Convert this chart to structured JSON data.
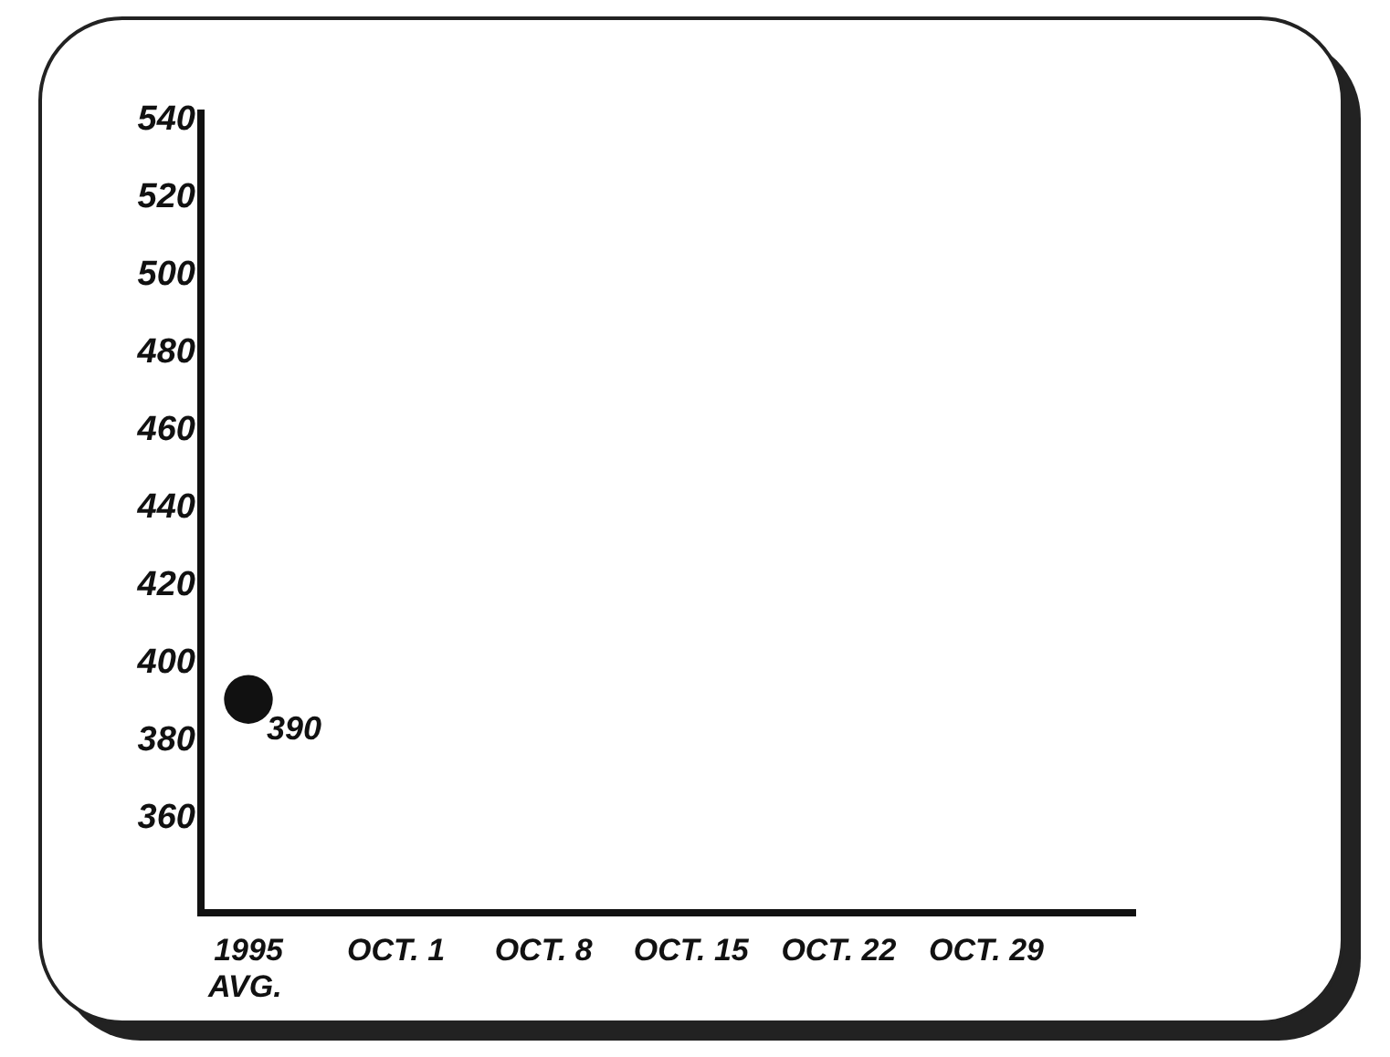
{
  "chart_data": {
    "type": "scatter",
    "categories": [
      "1995\nAVG.",
      "OCT. 1",
      "OCT. 8",
      "OCT. 15",
      "OCT. 22",
      "OCT. 29"
    ],
    "series": [
      {
        "color": "#111111",
        "values": [
          390,
          null,
          null,
          null,
          null,
          null
        ]
      }
    ],
    "ylim": [
      335,
      542
    ],
    "yticks": [
      360,
      380,
      400,
      420,
      440,
      460,
      480,
      500,
      520,
      540
    ],
    "marker": "circle",
    "data_labels": true
  }
}
